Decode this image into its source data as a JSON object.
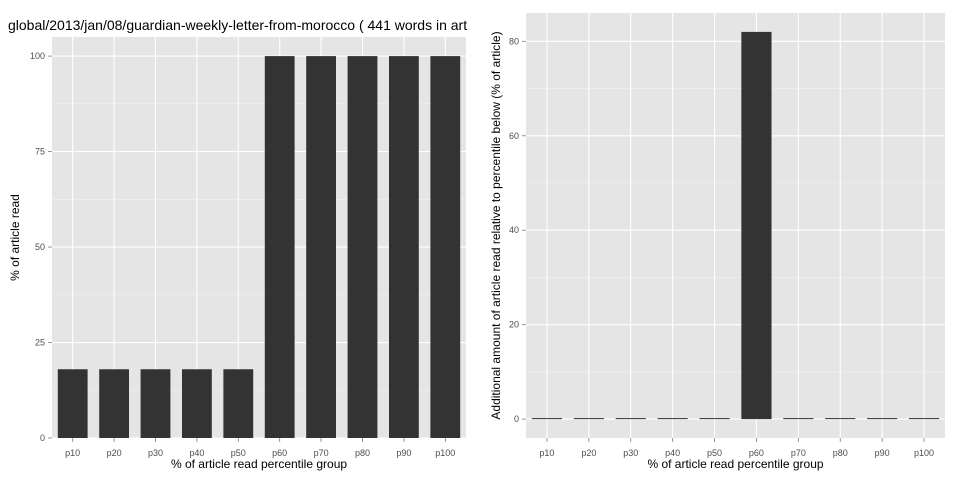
{
  "title": "global/2013/jan/08/guardian-weekly-letter-from-morocco ( 441 words in art",
  "colors": {
    "panel": "#e5e5e5",
    "grid_major": "#ffffff",
    "grid_minor": "#f2f2f2",
    "bar": "#333333",
    "tick_text": "#4d4d4d"
  },
  "chart_data": [
    {
      "type": "bar",
      "categories": [
        "p10",
        "p20",
        "p30",
        "p40",
        "p50",
        "p60",
        "p70",
        "p80",
        "p90",
        "p100"
      ],
      "values": [
        18,
        18,
        18,
        18,
        18,
        100,
        100,
        100,
        100,
        100
      ],
      "xlabel": "% of article read percentile group",
      "ylabel": "% of article read",
      "ylim": [
        0,
        105
      ],
      "yticks": [
        0,
        25,
        50,
        75,
        100
      ],
      "grid": true
    },
    {
      "type": "bar",
      "categories": [
        "p10",
        "p20",
        "p30",
        "p40",
        "p50",
        "p60",
        "p70",
        "p80",
        "p90",
        "p100"
      ],
      "values": [
        0,
        0,
        0,
        0,
        0,
        82,
        0,
        0,
        0,
        0
      ],
      "xlabel": "% of article read percentile group",
      "ylabel": "Additional amount of article read relative to percentile below (% of article)",
      "ylim": [
        -4,
        86
      ],
      "yticks": [
        0,
        20,
        40,
        60,
        80
      ],
      "grid": true
    }
  ]
}
